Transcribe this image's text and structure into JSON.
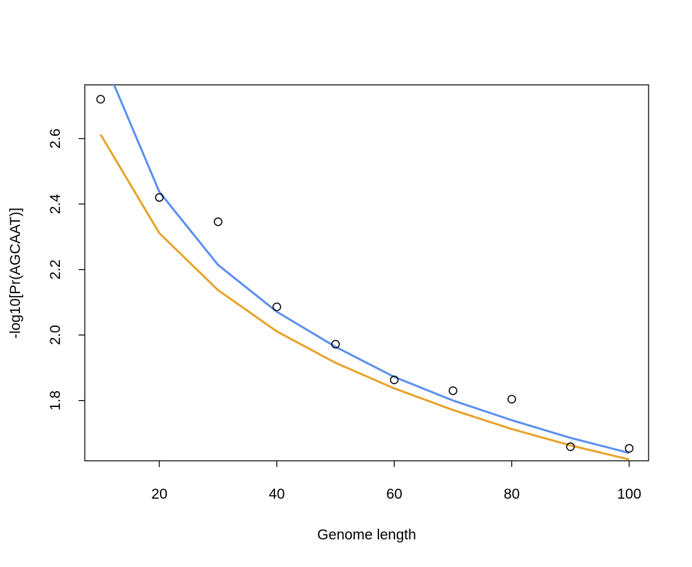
{
  "chart_data": {
    "type": "scatter",
    "title": "",
    "xlabel": "Genome length",
    "ylabel": "-log10[Pr(AGCAAT)]",
    "xlim": [
      7.3,
      103.3
    ],
    "ylim": [
      1.616,
      2.764
    ],
    "x_ticks": [
      20,
      40,
      60,
      80,
      100
    ],
    "y_ticks": [
      1.8,
      2.0,
      2.2,
      2.4,
      2.6
    ],
    "x_tick_labels": [
      "20",
      "40",
      "60",
      "80",
      "100"
    ],
    "y_tick_labels": [
      "1.8",
      "2.0",
      "2.2",
      "2.4",
      "2.6"
    ],
    "grid": false,
    "legend": "none",
    "points": {
      "x": [
        10,
        20,
        30,
        40,
        50,
        60,
        70,
        80,
        90,
        100
      ],
      "y": [
        2.72,
        2.42,
        2.346,
        2.086,
        1.972,
        1.863,
        1.83,
        1.804,
        1.659,
        1.654
      ],
      "marker": "open-circle",
      "color": "#000000"
    },
    "series": [
      {
        "color": "#5b8ff0",
        "style": "line",
        "x": [
          10,
          20,
          30,
          40,
          50,
          60,
          70,
          80,
          90,
          100
        ],
        "y": [
          2.861,
          2.437,
          2.214,
          2.071,
          1.964,
          1.872,
          1.8,
          1.74,
          1.686,
          1.64
        ]
      },
      {
        "color": "#e8a22a",
        "style": "line",
        "x": [
          10,
          20,
          30,
          40,
          50,
          60,
          70,
          80,
          90,
          100
        ],
        "y": [
          2.612,
          2.311,
          2.137,
          2.011,
          1.915,
          1.837,
          1.771,
          1.713,
          1.663,
          1.62
        ]
      }
    ]
  }
}
